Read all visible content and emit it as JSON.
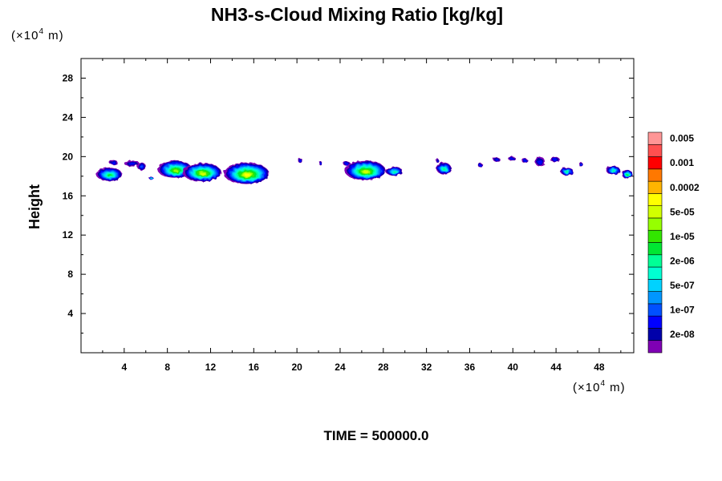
{
  "chart_data": {
    "type": "heatmap",
    "title": "NH3-s-Cloud Mixing Ratio [kg/kg]",
    "xlabel": "",
    "ylabel": "Height",
    "x_unit": {
      "prefix": "(×10",
      "exp": "4",
      "suffix": " m)"
    },
    "y_unit": {
      "prefix": "(×10",
      "exp": "4",
      "suffix": " m)"
    },
    "xlim": [
      0,
      51.2
    ],
    "ylim": [
      0,
      30
    ],
    "x_ticks": [
      4,
      8,
      12,
      16,
      20,
      24,
      28,
      32,
      36,
      40,
      44,
      48
    ],
    "x_tick_labels": [
      "4",
      "8",
      "12",
      "16",
      "20",
      "24",
      "28",
      "32",
      "36",
      "40",
      "44",
      "48"
    ],
    "y_ticks": [
      4,
      8,
      12,
      16,
      20,
      24,
      28
    ],
    "y_tick_labels": [
      "4",
      "8",
      "12",
      "16",
      "20",
      "24",
      "28"
    ],
    "grid": false,
    "colorbar": {
      "colors": [
        "#7f00b4",
        "#0000aa",
        "#0000ff",
        "#0050ff",
        "#0096ff",
        "#00d2ff",
        "#00ffd2",
        "#00ff96",
        "#00e632",
        "#32e600",
        "#96ff00",
        "#d2ff00",
        "#ffff00",
        "#ffb400",
        "#ff7800",
        "#ff0000",
        "#ff5050",
        "#ff9696"
      ],
      "tick_labels": [
        "2e-08",
        "1e-07",
        "5e-07",
        "2e-06",
        "1e-05",
        "5e-05",
        "0.0002",
        "0.001",
        "0.005"
      ]
    },
    "clouds": [
      {
        "x": 2.6,
        "y": 18.2,
        "w": 2.4,
        "h": 1.4,
        "level": 8
      },
      {
        "x": 3.0,
        "y": 19.4,
        "w": 0.8,
        "h": 0.5,
        "level": 2
      },
      {
        "x": 4.7,
        "y": 19.3,
        "w": 1.4,
        "h": 0.6,
        "level": 2
      },
      {
        "x": 5.6,
        "y": 19.0,
        "w": 0.8,
        "h": 0.8,
        "level": 3
      },
      {
        "x": 6.5,
        "y": 17.8,
        "w": 0.4,
        "h": 0.3,
        "level": 7
      },
      {
        "x": 8.7,
        "y": 18.7,
        "w": 3.2,
        "h": 1.8,
        "level": 10
      },
      {
        "x": 11.2,
        "y": 18.4,
        "w": 3.6,
        "h": 1.9,
        "level": 11
      },
      {
        "x": 15.3,
        "y": 18.3,
        "w": 4.2,
        "h": 2.2,
        "level": 12
      },
      {
        "x": 20.3,
        "y": 19.6,
        "w": 0.4,
        "h": 0.5,
        "level": 2
      },
      {
        "x": 22.2,
        "y": 19.3,
        "w": 0.3,
        "h": 0.4,
        "level": 2
      },
      {
        "x": 24.6,
        "y": 19.3,
        "w": 0.7,
        "h": 0.4,
        "level": 2
      },
      {
        "x": 26.3,
        "y": 18.6,
        "w": 3.8,
        "h": 2.0,
        "level": 11
      },
      {
        "x": 29.0,
        "y": 18.5,
        "w": 1.6,
        "h": 0.9,
        "level": 7
      },
      {
        "x": 33.6,
        "y": 18.8,
        "w": 1.4,
        "h": 1.2,
        "level": 7
      },
      {
        "x": 33.0,
        "y": 19.6,
        "w": 0.3,
        "h": 0.4,
        "level": 2
      },
      {
        "x": 37.0,
        "y": 19.1,
        "w": 0.4,
        "h": 0.5,
        "level": 2
      },
      {
        "x": 38.5,
        "y": 19.7,
        "w": 0.7,
        "h": 0.4,
        "level": 2
      },
      {
        "x": 39.9,
        "y": 19.8,
        "w": 0.7,
        "h": 0.4,
        "level": 2
      },
      {
        "x": 41.1,
        "y": 19.6,
        "w": 0.6,
        "h": 0.4,
        "level": 2
      },
      {
        "x": 42.5,
        "y": 19.5,
        "w": 0.9,
        "h": 1.0,
        "level": 2
      },
      {
        "x": 43.9,
        "y": 19.7,
        "w": 0.9,
        "h": 0.5,
        "level": 2
      },
      {
        "x": 45.0,
        "y": 18.5,
        "w": 1.2,
        "h": 0.8,
        "level": 7
      },
      {
        "x": 46.3,
        "y": 19.2,
        "w": 0.4,
        "h": 0.4,
        "level": 3
      },
      {
        "x": 49.3,
        "y": 18.6,
        "w": 1.3,
        "h": 0.9,
        "level": 7
      },
      {
        "x": 50.6,
        "y": 18.2,
        "w": 1.0,
        "h": 0.9,
        "level": 8
      }
    ]
  },
  "footer": {
    "time_label": "TIME = 500000.0"
  }
}
